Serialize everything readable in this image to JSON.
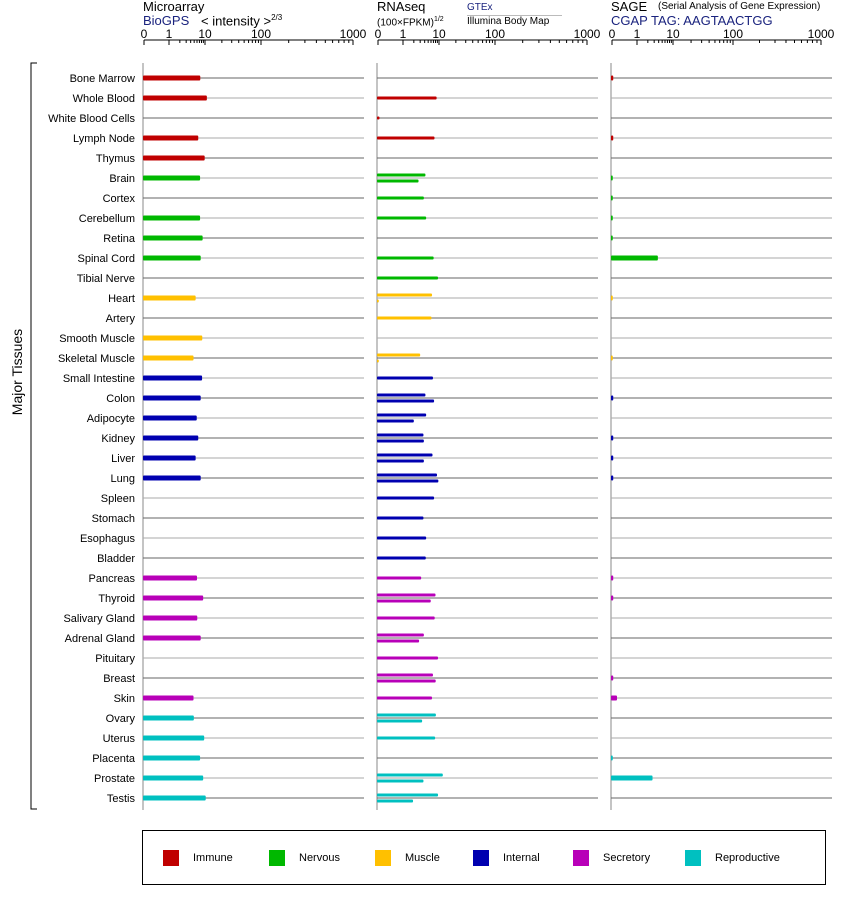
{
  "headers": {
    "microarray": {
      "title": "Microarray",
      "source": "BioGPS",
      "unit": "< intensity >",
      "exponent": "2/3"
    },
    "rnaseq": {
      "title": "RNAseq",
      "unit": "(100×FPKM)",
      "exponent": "1/2",
      "source1": "GTEx",
      "source2": "Illumina Body Map"
    },
    "sage": {
      "title": "SAGE",
      "subtitle": "(Serial Analysis of Gene Expression)",
      "tag": "CGAP TAG: AAGTAACTGG"
    }
  },
  "ylabel": "Major Tissues",
  "colors": {
    "Immune": "#c00000",
    "Nervous": "#00b800",
    "Muscle": "#ffc000",
    "Internal": "#0000b0",
    "Secretory": "#b800b8",
    "Reproductive": "#00c0c0"
  },
  "legend": [
    {
      "label": "Immune",
      "color": "#c00000"
    },
    {
      "label": "Nervous",
      "color": "#00b800"
    },
    {
      "label": "Muscle",
      "color": "#ffc000"
    },
    {
      "label": "Internal",
      "color": "#0000b0"
    },
    {
      "label": "Secretory",
      "color": "#b800b8"
    },
    {
      "label": "Reproductive",
      "color": "#00c0c0"
    }
  ],
  "chart_data": {
    "type": "bar",
    "xscale": "log",
    "xlim": [
      0,
      1000
    ],
    "xticks": [
      0,
      1,
      10,
      100,
      1000
    ],
    "categories": [
      "Bone Marrow",
      "Whole Blood",
      "White Blood Cells",
      "Lymph Node",
      "Thymus",
      "Brain",
      "Cortex",
      "Cerebellum",
      "Retina",
      "Spinal Cord",
      "Tibial Nerve",
      "Heart",
      "Artery",
      "Smooth Muscle",
      "Skeletal Muscle",
      "Small Intestine",
      "Colon",
      "Adipocyte",
      "Kidney",
      "Liver",
      "Lung",
      "Spleen",
      "Stomach",
      "Esophagus",
      "Bladder",
      "Pancreas",
      "Thyroid",
      "Salivary Gland",
      "Adrenal Gland",
      "Pituitary",
      "Breast",
      "Skin",
      "Ovary",
      "Uterus",
      "Placenta",
      "Prostate",
      "Testis"
    ],
    "groups": [
      "Immune",
      "Immune",
      "Immune",
      "Immune",
      "Immune",
      "Nervous",
      "Nervous",
      "Nervous",
      "Nervous",
      "Nervous",
      "Nervous",
      "Muscle",
      "Muscle",
      "Muscle",
      "Muscle",
      "Internal",
      "Internal",
      "Internal",
      "Internal",
      "Internal",
      "Internal",
      "Internal",
      "Internal",
      "Internal",
      "Internal",
      "Secretory",
      "Secretory",
      "Secretory",
      "Secretory",
      "Secretory",
      "Secretory",
      "Secretory",
      "Reproductive",
      "Reproductive",
      "Reproductive",
      "Reproductive",
      "Reproductive"
    ],
    "series": [
      {
        "name": "Microarray",
        "values": [
          7.4,
          10.8,
          null,
          6.5,
          9.8,
          7.3,
          null,
          7.3,
          8.6,
          7.6,
          null,
          5.5,
          null,
          8.4,
          4.8,
          8.3,
          7.6,
          5.9,
          6.5,
          5.5,
          7.6,
          null,
          null,
          null,
          null,
          6.0,
          8.9,
          6.1,
          7.6,
          null,
          null,
          4.8,
          4.9,
          9.5,
          7.3,
          8.9,
          10.3
        ]
      },
      {
        "name": "GTEx",
        "values": [
          null,
          8.6,
          0.06,
          7.5,
          null,
          4.2,
          3.8,
          4.4,
          null,
          7.1,
          9.4,
          6.4,
          6.2,
          null,
          3.0,
          6.8,
          4.2,
          4.4,
          3.7,
          6.6,
          8.8,
          7.3,
          3.7,
          4.4,
          4.3,
          3.2,
          8.0,
          7.6,
          3.8,
          9.4,
          6.8,
          6.4,
          8.2,
          7.8,
          null,
          11.7,
          9.4
        ]
      },
      {
        "name": "Illumina Body Map",
        "values": [
          null,
          null,
          null,
          null,
          null,
          2.7,
          null,
          null,
          null,
          null,
          null,
          0.03,
          null,
          null,
          0.03,
          null,
          7.3,
          2.0,
          3.8,
          3.8,
          9.6,
          null,
          null,
          null,
          null,
          null,
          5.9,
          null,
          2.8,
          null,
          8.1,
          null,
          3.4,
          null,
          null,
          3.7,
          1.9
        ]
      },
      {
        "name": "SAGE",
        "values": [
          0.05,
          null,
          null,
          0.05,
          null,
          0.03,
          0.03,
          0.03,
          0.03,
          3.8,
          null,
          0.03,
          null,
          null,
          0.03,
          null,
          0.05,
          null,
          0.05,
          0.05,
          0.05,
          null,
          null,
          null,
          null,
          0.05,
          0.05,
          null,
          null,
          null,
          0.05,
          0.2,
          null,
          null,
          0.03,
          2.7,
          null
        ]
      }
    ]
  }
}
